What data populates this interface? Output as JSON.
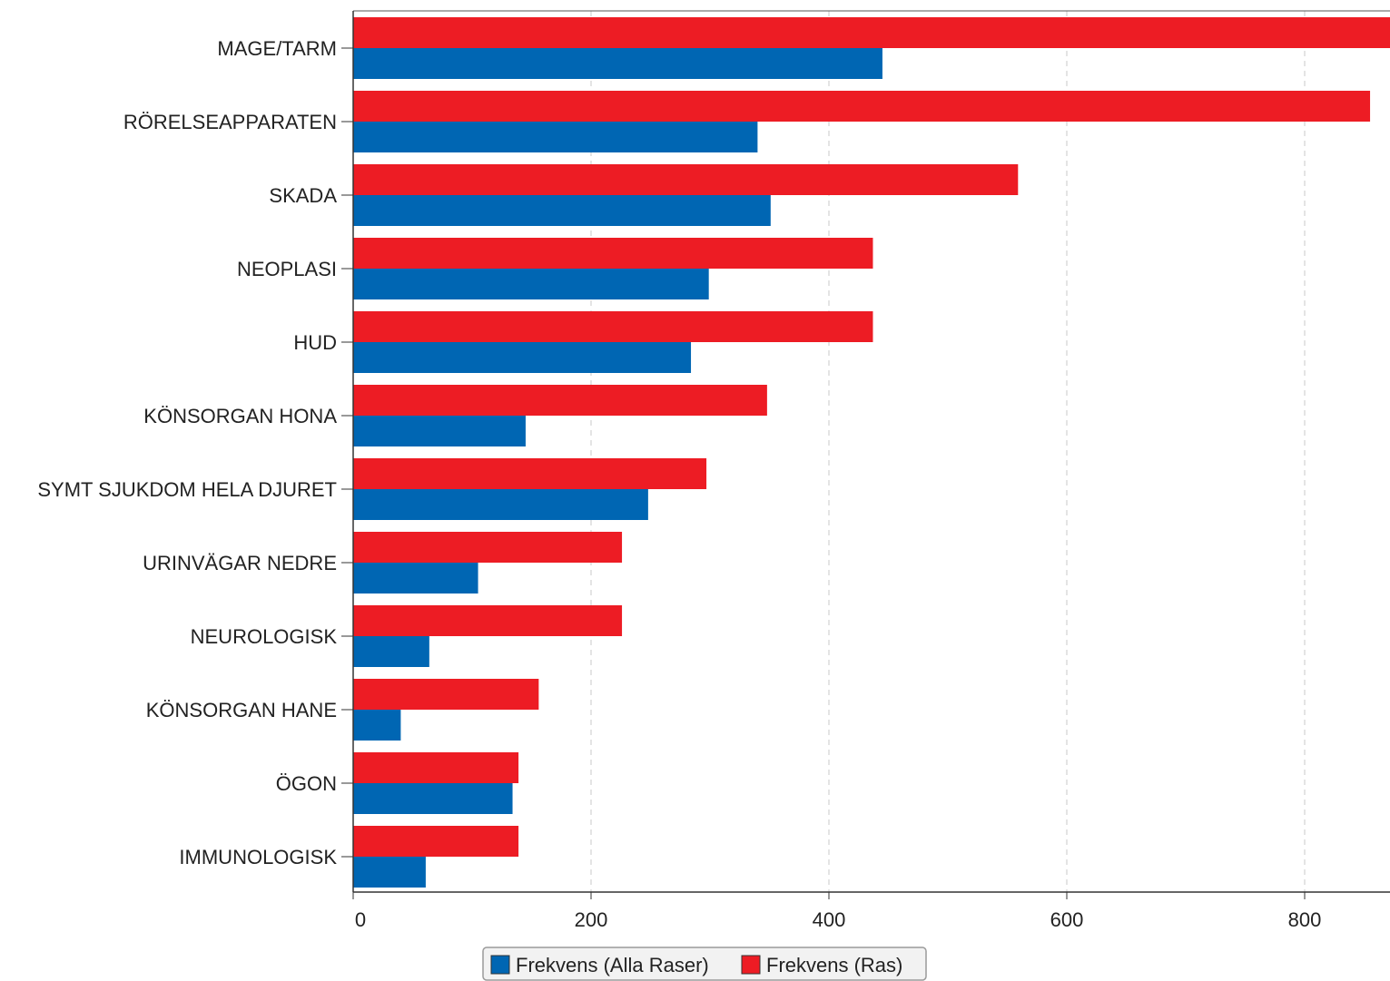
{
  "chart_data": {
    "type": "bar",
    "orientation": "horizontal",
    "categories": [
      "MAGE/TARM",
      "RÖRELSEAPPARATEN",
      "SKADA",
      "NEOPLASI",
      "HUD",
      "KÖNSORGAN HONA",
      "SYMT SJUKDOM HELA DJURET",
      "URINVÄGAR NEDRE",
      "NEUROLOGISK",
      "KÖNSORGAN HANE",
      "ÖGON",
      "IMMUNOLOGISK"
    ],
    "series": [
      {
        "name": "Frekvens (Alla Raser)",
        "color": "#0066b3",
        "values": [
          445,
          340,
          351,
          299,
          284,
          145,
          248,
          105,
          64,
          40,
          134,
          61
        ]
      },
      {
        "name": "Frekvens (Ras)",
        "color": "#ed1c24",
        "values": [
          875,
          855,
          559,
          437,
          437,
          348,
          297,
          226,
          226,
          156,
          139,
          139
        ]
      }
    ],
    "xlim": [
      0,
      871
    ],
    "xticks": [
      "0",
      "200",
      "400",
      "600",
      "800"
    ],
    "grid": "vertical dashed",
    "legend_position": "bottom-center",
    "title": "",
    "xlabel": "",
    "ylabel": ""
  }
}
